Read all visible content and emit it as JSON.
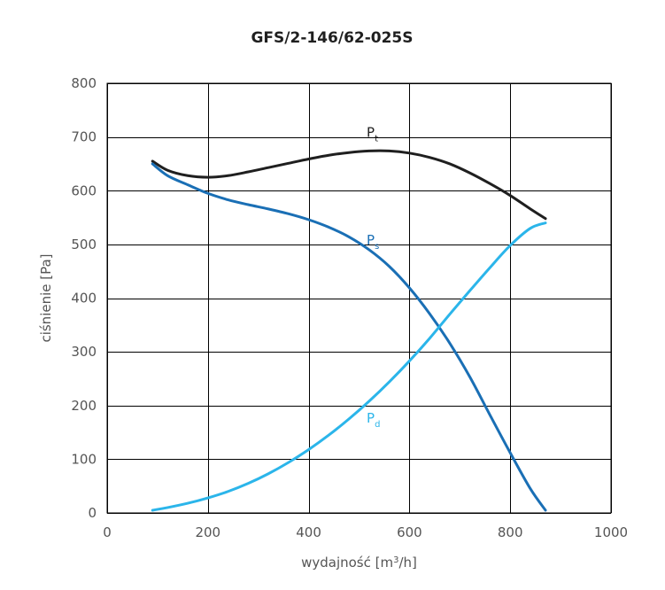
{
  "chart_data": {
    "type": "line",
    "title": "GFS/2-146/62-025S",
    "xlabel": "wydajność [m³/h]",
    "xlabel_parts": {
      "before": "wydajność [m",
      "superscript": "3",
      "after": "/h]"
    },
    "ylabel": "ciśnienie [Pa]",
    "xlim": [
      0,
      1000
    ],
    "ylim": [
      0,
      800
    ],
    "x_ticks": [
      0,
      200,
      400,
      600,
      800,
      1000
    ],
    "y_ticks": [
      0,
      100,
      200,
      300,
      400,
      500,
      600,
      700,
      800
    ],
    "grid": true,
    "legend": "inline labels",
    "series": [
      {
        "name": "Pt",
        "label_main": "P",
        "label_sub": "t",
        "color": "#1f1f1f",
        "label_at": [
          515,
          700
        ],
        "x": [
          90,
          120,
          160,
          200,
          240,
          280,
          320,
          360,
          400,
          440,
          480,
          520,
          560,
          600,
          640,
          680,
          720,
          760,
          800,
          840,
          870
        ],
        "y": [
          655,
          638,
          628,
          625,
          628,
          635,
          643,
          651,
          659,
          666,
          671,
          674,
          674,
          670,
          662,
          650,
          633,
          613,
          591,
          566,
          548
        ]
      },
      {
        "name": "Ps",
        "label_main": "P",
        "label_sub": "s",
        "color": "#1a6fb5",
        "label_at": [
          515,
          500
        ],
        "x": [
          90,
          120,
          160,
          200,
          240,
          280,
          320,
          360,
          400,
          440,
          480,
          520,
          560,
          600,
          640,
          680,
          720,
          760,
          800,
          840,
          870
        ],
        "y": [
          650,
          628,
          611,
          595,
          583,
          574,
          566,
          557,
          546,
          532,
          514,
          490,
          459,
          419,
          371,
          316,
          253,
          182,
          112,
          45,
          5
        ]
      },
      {
        "name": "Pd",
        "label_main": "P",
        "label_sub": "d",
        "color": "#2bb5ea",
        "label_at": [
          515,
          168
        ],
        "x": [
          90,
          120,
          160,
          200,
          240,
          280,
          320,
          360,
          400,
          440,
          480,
          520,
          560,
          600,
          640,
          680,
          720,
          760,
          800,
          840,
          870
        ],
        "y": [
          5,
          10,
          18,
          28,
          40,
          55,
          73,
          94,
          118,
          145,
          175,
          208,
          244,
          283,
          325,
          370,
          414,
          457,
          498,
          530,
          540
        ]
      }
    ]
  }
}
